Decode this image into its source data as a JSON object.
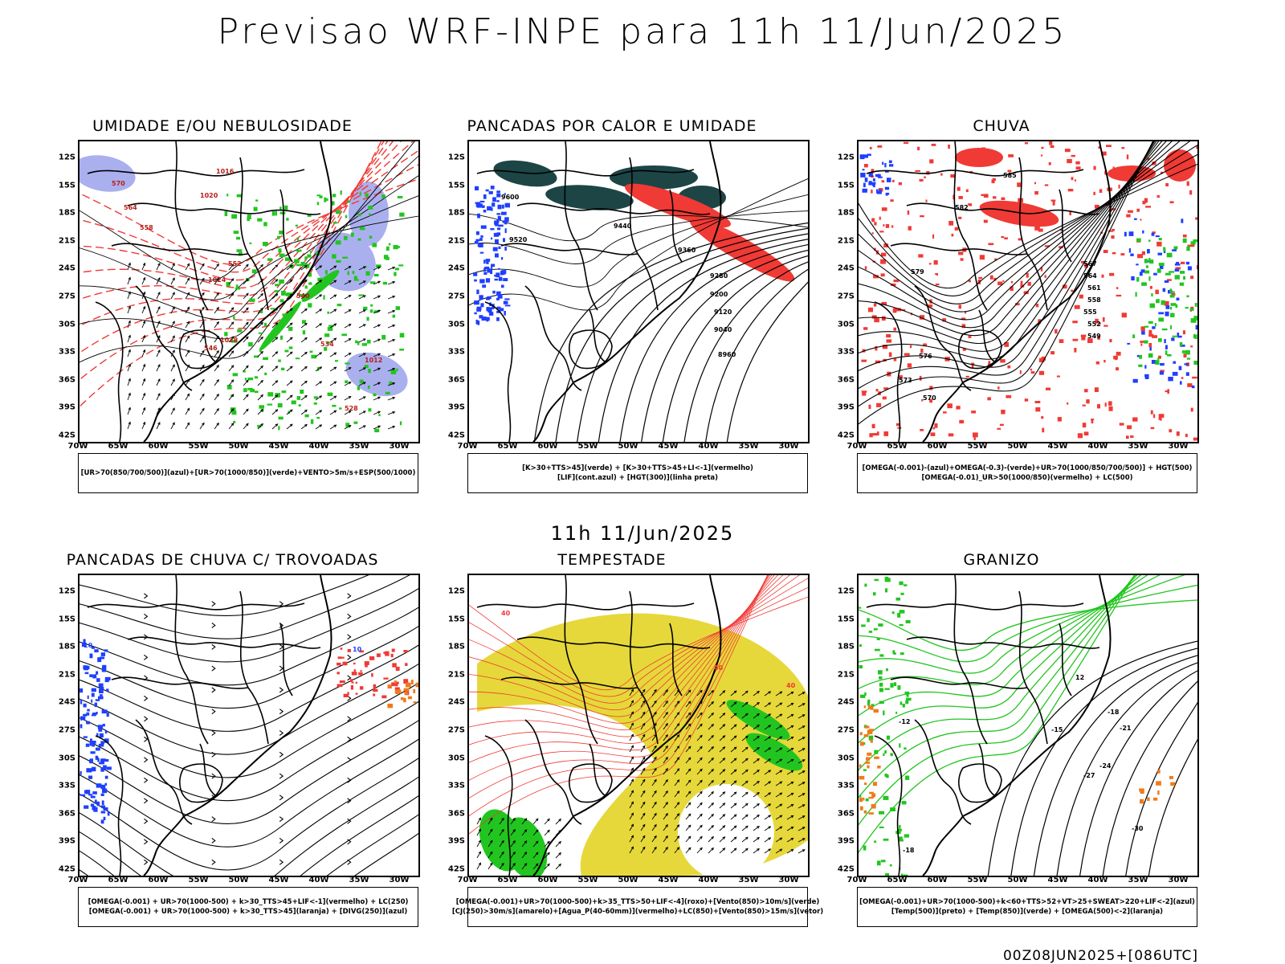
{
  "header": {
    "title": "Previsao WRF-INPE  para 11h 11/Jun/2025",
    "mid_title": "11h 11/Jun/2025",
    "footer_code": "00Z08JUN2025+[086UTC]"
  },
  "axes": {
    "lat_ticks": [
      "12S",
      "15S",
      "18S",
      "21S",
      "24S",
      "27S",
      "30S",
      "33S",
      "36S",
      "39S",
      "42S"
    ],
    "lon_ticks": [
      "70W",
      "65W",
      "60W",
      "55W",
      "50W",
      "45W",
      "40W",
      "35W",
      "30W"
    ]
  },
  "colors": {
    "azul": "#1f3fff",
    "verde": "#22c51f",
    "vermelho": "#f03a35",
    "laranja": "#f07a1a",
    "amarelo": "#e6d83a",
    "lilas": "#aab0ee",
    "teal": "#1d4546",
    "preto": "#000000"
  },
  "panels": [
    {
      "id": "umidade",
      "title": "UMIDADE E/OU NEBULOSIDADE",
      "legend": [
        "[UR>70(850/700/500)](azul)+[UR>70(1000/850)](verde)+VENTO>5m/s+ESP(500/1000)"
      ],
      "labels": [
        {
          "text": "1020"
        },
        {
          "text": "1016"
        },
        {
          "text": "1024"
        },
        {
          "text": "1028"
        },
        {
          "text": "1012"
        },
        {
          "text": "570"
        },
        {
          "text": "564"
        },
        {
          "text": "558"
        },
        {
          "text": "552"
        },
        {
          "text": "546"
        },
        {
          "text": "540"
        },
        {
          "text": "534"
        },
        {
          "text": "528"
        }
      ]
    },
    {
      "id": "pancadas",
      "title": "PANCADAS POR CALOR E UMIDADE",
      "legend": [
        "[K>30+TTS>45](verde) + [K>30+TTS>45+LI<-1](vermelho)",
        "[LIF](cont.azul) + [HGT(300)](linha preta)"
      ],
      "labels": [
        {
          "text": "9600"
        },
        {
          "text": "9520"
        },
        {
          "text": "9440"
        },
        {
          "text": "9360"
        },
        {
          "text": "9280"
        },
        {
          "text": "9200"
        },
        {
          "text": "9120"
        },
        {
          "text": "9040"
        },
        {
          "text": "8960"
        }
      ]
    },
    {
      "id": "chuva",
      "title": "CHUVA",
      "legend": [
        "[OMEGA(-0.001)-(azul)+OMEGA(-0.3)-(verde)+UR>70(1000/850/700/500)] + HGT(500)",
        "[OMEGA(-0.01)_UR>50(1000/850)(vermelho) + LC(500)"
      ],
      "labels": [
        {
          "text": "585"
        },
        {
          "text": "582"
        },
        {
          "text": "579"
        },
        {
          "text": "576"
        },
        {
          "text": "573"
        },
        {
          "text": "570"
        },
        {
          "text": "567"
        },
        {
          "text": "564"
        },
        {
          "text": "561"
        },
        {
          "text": "558"
        },
        {
          "text": "555"
        },
        {
          "text": "552"
        },
        {
          "text": "549"
        }
      ]
    },
    {
      "id": "trovoadas",
      "title": "PANCADAS DE CHUVA C/ TROVOADAS",
      "legend": [
        "[OMEGA(-0.001) + UR>70(1000-500) + k>30_TTS>45+LIF<-1](vermelho) + LC(250)",
        "[OMEGA(-0.001) + UR>70(1000-500) + k>30_TTS>45](laranja) + [DIVG(250)](azul)"
      ],
      "labels": [
        {
          "text": "10"
        },
        {
          "text": "10"
        }
      ]
    },
    {
      "id": "tempestade",
      "title": "TEMPESTADE",
      "legend": [
        "[OMEGA(-0.001)+UR>70(1000-500)+k>35_TTS>50+LIF<-4](roxo)+[Vento(850)>10m/s](verde)",
        "[CJ(250)>30m/s](amarelo)+[Agua_P(40-60mm)](vermelho)+LC(850)+[Vento(850)>15m/s](vetor)"
      ],
      "labels": [
        {
          "text": "40"
        },
        {
          "text": "40"
        },
        {
          "text": "40"
        }
      ]
    },
    {
      "id": "granizo",
      "title": "GRANIZO",
      "legend": [
        "[OMEGA(-0.001)+UR>70(1000-500)+k<60+TTS>52+VT>25+SWEAT>220+LIF<-2](azul)",
        "[Temp(500)](preto) + [Temp(850)](verde) + [OMEGA(500)<-2](laranja)"
      ],
      "labels": [
        {
          "text": "-12"
        },
        {
          "text": "-15"
        },
        {
          "text": "-18"
        },
        {
          "text": "-21"
        },
        {
          "text": "-24"
        },
        {
          "text": "-27"
        },
        {
          "text": "-30"
        },
        {
          "text": "-18"
        },
        {
          "text": "12"
        }
      ]
    }
  ]
}
